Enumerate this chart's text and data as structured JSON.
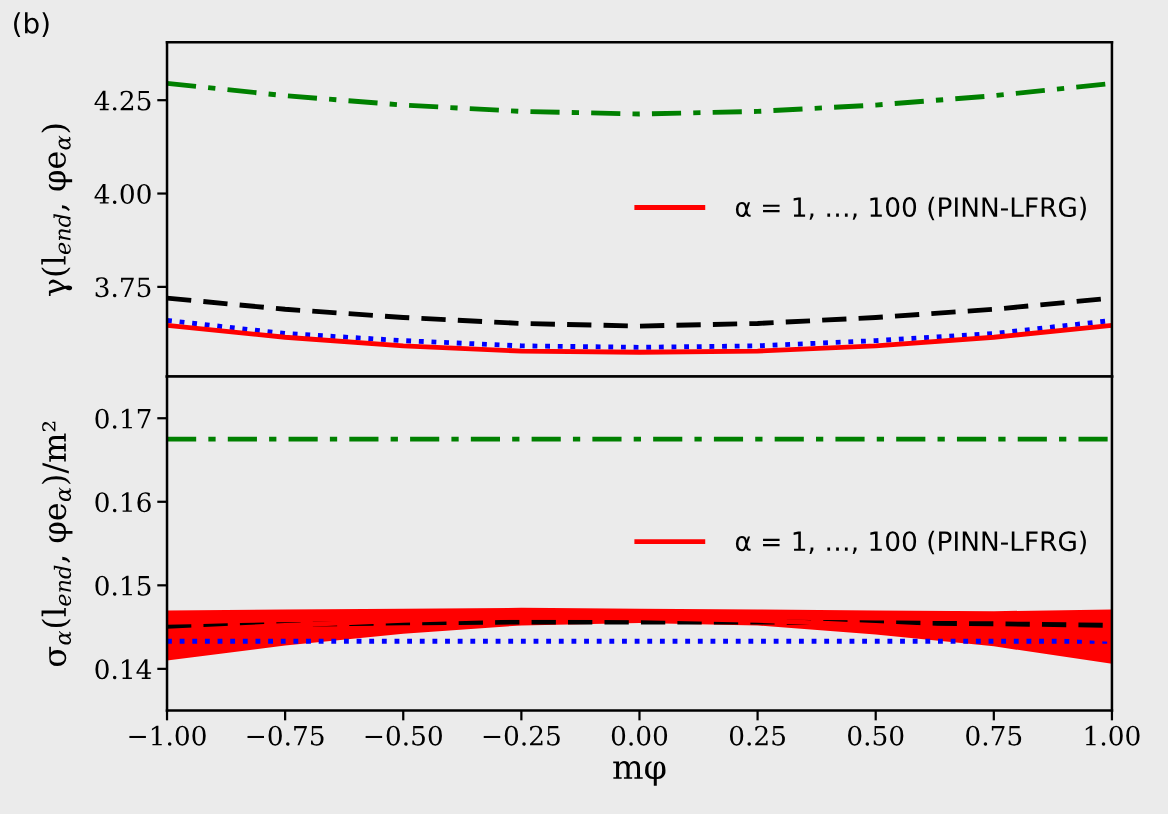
{
  "chart_data": [
    {
      "type": "line",
      "ylabel": "γ(l$_{end}$, φe$_{α}$)",
      "annotations": [
        "(b)"
      ],
      "x": [
        -1,
        -0.75,
        -0.5,
        -0.25,
        0,
        0.25,
        0.5,
        0.75,
        1
      ],
      "series": [
        {
          "color": "#008000",
          "line_style": "dashdot",
          "values": [
            4.295,
            4.262,
            4.237,
            4.22,
            4.213,
            4.22,
            4.237,
            4.262,
            4.295
          ]
        },
        {
          "color": "#000000",
          "line_style": "dashed",
          "values": [
            3.72,
            3.69,
            3.668,
            3.652,
            3.645,
            3.652,
            3.668,
            3.69,
            3.72
          ]
        },
        {
          "color": "#0000ff",
          "line_style": "dotted",
          "values": [
            3.66,
            3.625,
            3.606,
            3.592,
            3.588,
            3.592,
            3.606,
            3.625,
            3.66
          ]
        },
        {
          "name": "α = 1, …, 100 (PINN-LFRG)",
          "color": "#ff0000",
          "line_style": "solid",
          "values": [
            3.647,
            3.615,
            3.592,
            3.578,
            3.575,
            3.578,
            3.592,
            3.615,
            3.647
          ]
        }
      ],
      "xlim": [
        -1,
        1
      ],
      "ylim": [
        3.51,
        4.405
      ],
      "yticks": [
        {
          "value": 3.75,
          "label": "3.75"
        },
        {
          "value": 4.0,
          "label": "4.00"
        },
        {
          "value": 4.25,
          "label": "4.25"
        }
      ],
      "tick_labels": "y",
      "legend": "right",
      "grid": false
    },
    {
      "type": "line",
      "xlabel": "mφ",
      "ylabel": "σ$_{α}$(l$_{end}$, φe$_{α}$)/m²",
      "x": [
        -1,
        -0.75,
        -0.5,
        -0.25,
        0,
        0.25,
        0.5,
        0.75,
        1
      ],
      "series": [
        {
          "color": "#008000",
          "line_style": "dashdot",
          "values": [
            0.1675,
            0.1675,
            0.1675,
            0.1675,
            0.1675,
            0.1675,
            0.1675,
            0.1675,
            0.1675
          ]
        },
        {
          "color": "#000000",
          "line_style": "dashed",
          "values": [
            0.145,
            0.1453,
            0.1455,
            0.1456,
            0.1456,
            0.1456,
            0.1455,
            0.1454,
            0.1452
          ]
        },
        {
          "color": "#0000ff",
          "line_style": "dotted",
          "values": [
            0.1433,
            0.1433,
            0.1433,
            0.1433,
            0.1433,
            0.1433,
            0.1433,
            0.1433,
            0.1433
          ]
        },
        {
          "name": "α = 1, …, 100 (PINN-LFRG)",
          "color": "#ff0000",
          "line_style": "solid",
          "values": [
            0.1445,
            0.1452,
            0.1458,
            0.1462,
            0.1461,
            0.1458,
            0.1452,
            0.1445,
            0.1435
          ],
          "lower": [
            0.141,
            0.1428,
            0.1442,
            0.1452,
            0.1455,
            0.1452,
            0.1441,
            0.1427,
            0.1406
          ],
          "upper": [
            0.147,
            0.1471,
            0.1472,
            0.1473,
            0.1472,
            0.1471,
            0.147,
            0.1469,
            0.1471
          ]
        }
      ],
      "xlim": [
        -1,
        1
      ],
      "ylim": [
        0.135,
        0.175
      ],
      "xticks": [
        {
          "value": -1,
          "label": "−1.00"
        },
        {
          "value": -0.75,
          "label": "−0.75"
        },
        {
          "value": -0.5,
          "label": "−0.50"
        },
        {
          "value": -0.25,
          "label": "−0.25"
        },
        {
          "value": 0,
          "label": "0.00"
        },
        {
          "value": 0.25,
          "label": "0.25"
        },
        {
          "value": 0.5,
          "label": "0.50"
        },
        {
          "value": 0.75,
          "label": "0.75"
        },
        {
          "value": 1,
          "label": "1.00"
        }
      ],
      "yticks": [
        {
          "value": 0.14,
          "label": "0.14"
        },
        {
          "value": 0.15,
          "label": "0.15"
        },
        {
          "value": 0.16,
          "label": "0.16"
        },
        {
          "value": 0.17,
          "label": "0.17"
        }
      ],
      "legend": "right",
      "grid": false
    }
  ]
}
